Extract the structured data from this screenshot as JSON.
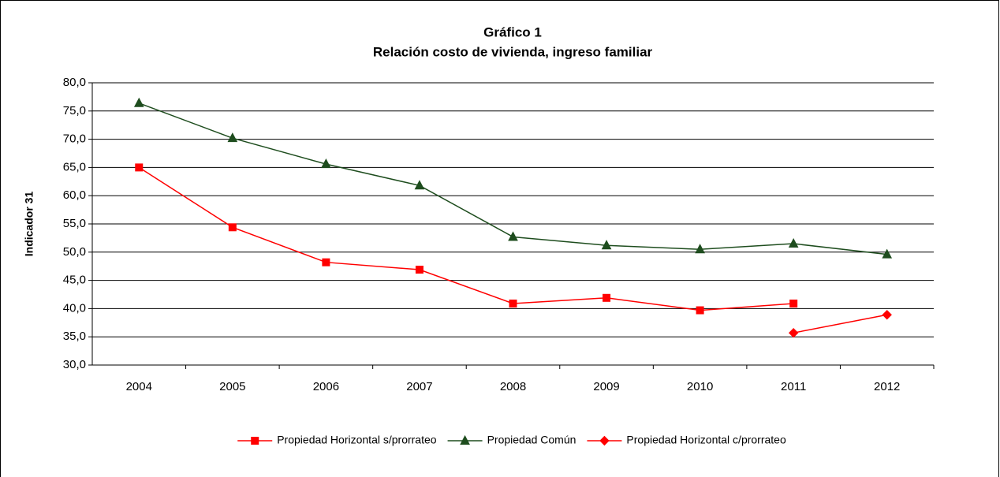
{
  "chart_data": {
    "type": "line",
    "title": "Gráfico 1",
    "subtitle": "Relación costo de vivienda, ingreso familiar",
    "y_label": "Indicador 31",
    "categories": [
      "2004",
      "2005",
      "2006",
      "2007",
      "2008",
      "2009",
      "2010",
      "2011",
      "2012"
    ],
    "series": [
      {
        "name": "Propiedad Horizontal s/prorrateo",
        "color": "#ff0000",
        "marker": "square",
        "values": [
          65.0,
          54.4,
          48.2,
          46.9,
          40.9,
          41.9,
          39.7,
          40.9,
          null
        ]
      },
      {
        "name": "Propiedad Común",
        "color": "#1e4d1e",
        "marker": "triangle",
        "values": [
          76.4,
          70.2,
          65.6,
          61.8,
          52.7,
          51.2,
          50.5,
          51.5,
          49.6
        ]
      },
      {
        "name": "Propiedad Horizontal c/prorrateo",
        "color": "#ff0000",
        "marker": "diamond",
        "values": [
          null,
          null,
          null,
          null,
          null,
          null,
          null,
          35.7,
          38.9
        ]
      }
    ],
    "ylim": [
      30,
      80
    ],
    "yticks": [
      {
        "value": 30,
        "label": "30,0"
      },
      {
        "value": 35,
        "label": "35,0"
      },
      {
        "value": 40,
        "label": "40,0"
      },
      {
        "value": 45,
        "label": "45,0"
      },
      {
        "value": 50,
        "label": "50,0"
      },
      {
        "value": 55,
        "label": "55,0"
      },
      {
        "value": 60,
        "label": "60,0"
      },
      {
        "value": 65,
        "label": "65,0"
      },
      {
        "value": 70,
        "label": "70,0"
      },
      {
        "value": 75,
        "label": "75,0"
      },
      {
        "value": 80,
        "label": "80,0"
      }
    ],
    "grid": true,
    "legend": "bottom"
  }
}
